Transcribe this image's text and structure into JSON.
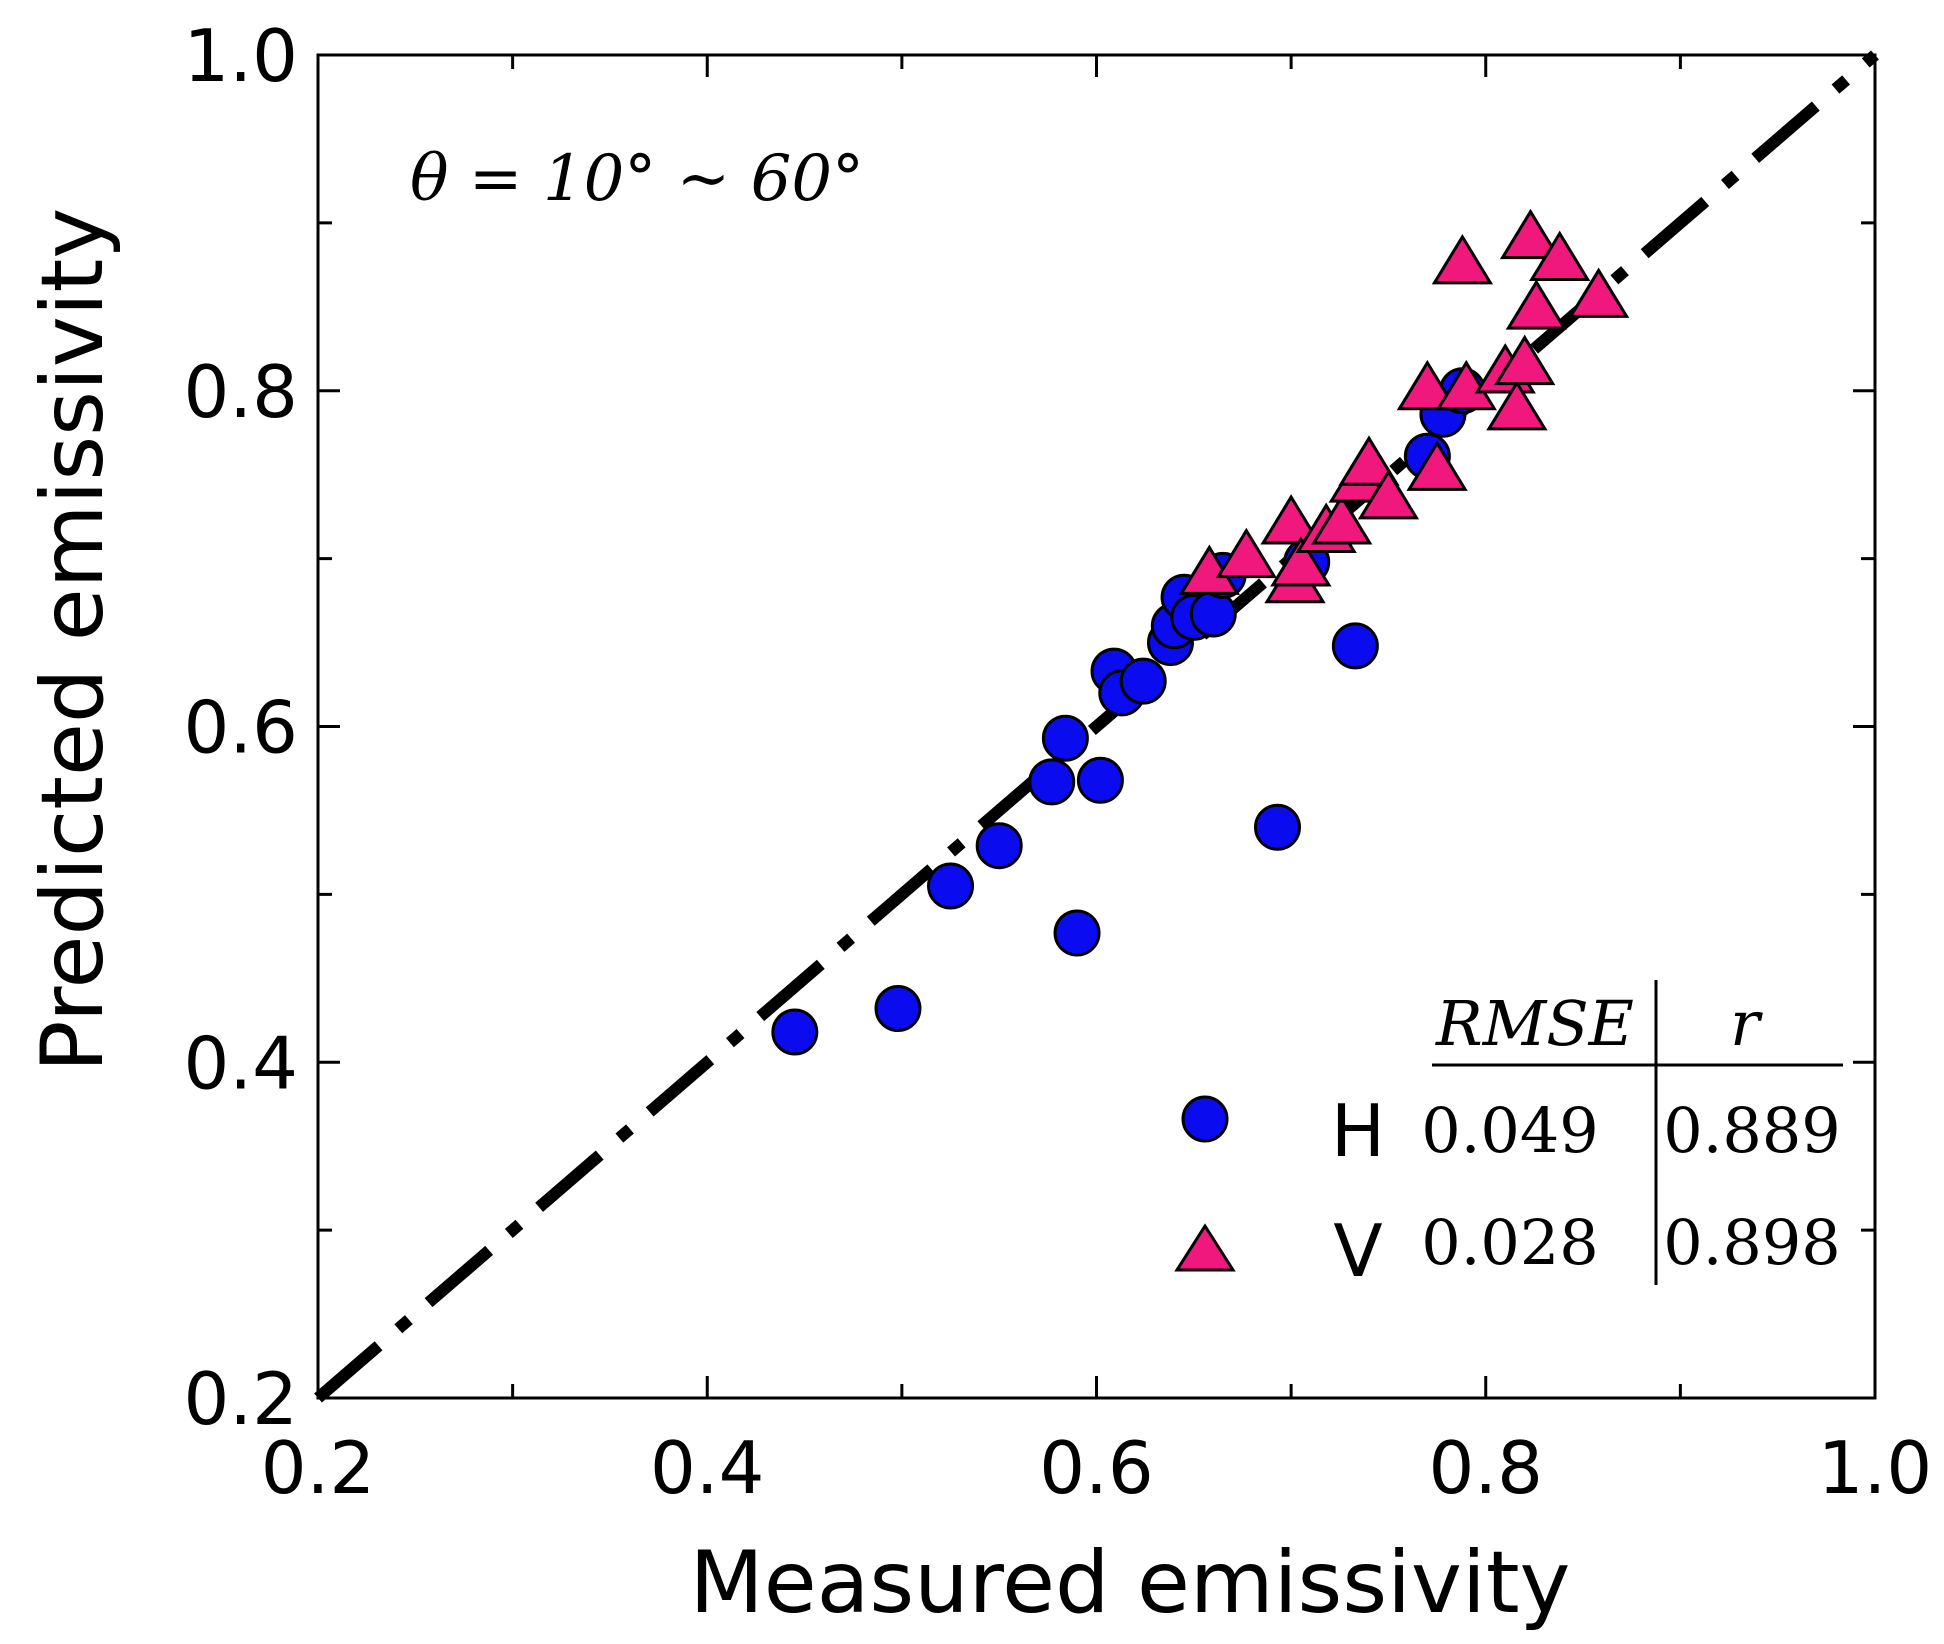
{
  "chart_data": {
    "type": "scatter",
    "title": "",
    "xlabel": "Measured emissivity",
    "ylabel": "Predicted emissivity",
    "xlim": [
      0.2,
      1.0
    ],
    "ylim": [
      0.2,
      1.0
    ],
    "xticks": [
      "0.2",
      "0.4",
      "0.6",
      "0.8",
      "1.0"
    ],
    "yticks": [
      "0.2",
      "0.4",
      "0.6",
      "0.8",
      "1.0"
    ],
    "annotation": "θ = 10° ∼ 60°",
    "reference_line": "1:1",
    "series": [
      {
        "name": "H",
        "marker": "circle",
        "color": "#0b0bf0",
        "x": [
          0.445,
          0.498,
          0.525,
          0.55,
          0.577,
          0.584,
          0.59,
          0.602,
          0.609,
          0.613,
          0.624,
          0.638,
          0.64,
          0.645,
          0.65,
          0.66,
          0.665,
          0.693,
          0.708,
          0.733,
          0.77,
          0.778,
          0.788
        ],
        "y": [
          0.418,
          0.432,
          0.505,
          0.529,
          0.567,
          0.593,
          0.477,
          0.568,
          0.633,
          0.62,
          0.627,
          0.65,
          0.66,
          0.677,
          0.665,
          0.667,
          0.69,
          0.54,
          0.698,
          0.648,
          0.761,
          0.786,
          0.8
        ]
      },
      {
        "name": "V",
        "marker": "triangle",
        "color": "#f0187d",
        "x": [
          0.658,
          0.677,
          0.7,
          0.702,
          0.705,
          0.718,
          0.726,
          0.735,
          0.74,
          0.75,
          0.77,
          0.775,
          0.79,
          0.788,
          0.81,
          0.816,
          0.82,
          0.823,
          0.826,
          0.838,
          0.858
        ],
        "y": [
          0.69,
          0.7,
          0.72,
          0.685,
          0.695,
          0.715,
          0.72,
          0.745,
          0.755,
          0.735,
          0.8,
          0.752,
          0.8,
          0.875,
          0.81,
          0.788,
          0.815,
          0.89,
          0.848,
          0.877,
          0.855
        ]
      }
    ],
    "stats_table": {
      "headers": [
        "RMSE",
        "r"
      ],
      "rows": [
        {
          "label": "H",
          "rmse": "0.049",
          "r": "0.889"
        },
        {
          "label": "V",
          "rmse": "0.028",
          "r": "0.898"
        }
      ]
    }
  }
}
